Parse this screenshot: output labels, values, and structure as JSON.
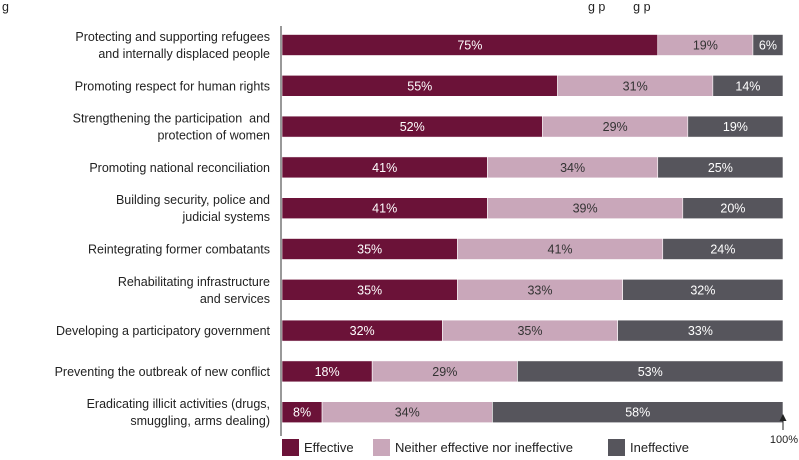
{
  "header_text_fragment": "g",
  "header_text_fragment_right": "g p        g p",
  "chart_data": {
    "type": "bar",
    "orientation": "horizontal",
    "stacked": true,
    "xlim": [
      0,
      100
    ],
    "categories": [
      [
        "Protecting and supporting refugees",
        "and internally displaced people"
      ],
      [
        "Promoting respect for human rights"
      ],
      [
        "Strengthening the participation  and",
        "protection of women"
      ],
      [
        "Promoting national reconciliation"
      ],
      [
        "Building security, police and",
        "judicial systems"
      ],
      [
        "Reintegrating former combatants"
      ],
      [
        "Rehabilitating infrastructure",
        "and services"
      ],
      [
        "Developing a participatory government"
      ],
      [
        "Preventing the outbreak of new conflict"
      ],
      [
        "Eradicating illicit activities (drugs,",
        "smuggling, arms dealing)"
      ]
    ],
    "series": [
      {
        "name": "Effective",
        "color": "#6b1238",
        "label_color": "#ffffff",
        "values": [
          75,
          55,
          52,
          41,
          41,
          35,
          35,
          32,
          18,
          8
        ],
        "labels": [
          "75%",
          "55%",
          "52%",
          "41%",
          "41%",
          "35%",
          "35%",
          "32%",
          "18%",
          "8%"
        ]
      },
      {
        "name": "Neither effective nor ineffective",
        "color": "#c9a7ba",
        "label_color": "#333333",
        "values": [
          19,
          31,
          29,
          34,
          39,
          41,
          33,
          35,
          29,
          34
        ],
        "labels": [
          "19%",
          "31%",
          "29%",
          "34%",
          "39%",
          "41%",
          "33%",
          "35%",
          "29%",
          "34%"
        ]
      },
      {
        "name": "Ineffective",
        "color": "#56555c",
        "label_color": "#ffffff",
        "values": [
          6,
          14,
          19,
          25,
          20,
          24,
          32,
          33,
          53,
          58
        ],
        "labels": [
          "6%",
          "14%",
          "19%",
          "25%",
          "20%",
          "24%",
          "32%",
          "33%",
          "53%",
          "58%"
        ]
      }
    ],
    "end_marker": "100%",
    "legend_position": "bottom-center",
    "grid": false
  }
}
